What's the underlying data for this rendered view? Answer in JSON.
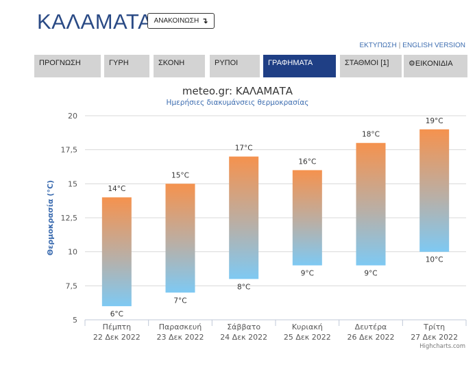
{
  "header": {
    "city": "ΚΑΛΑΜΑΤΑ",
    "announce_label": "ΑΝΑΚΟΙΝΩΣΗ",
    "announce_icon": "arrow-down-right-icon",
    "print_link": "ΕΚΤΥΠΩΣΗ",
    "english_link": "ENGLISH VERSION"
  },
  "tabs": [
    {
      "label": "ΠΡΟΓΝΩΣΗ",
      "active": false
    },
    {
      "label": "ΓΥΡΗ",
      "active": false
    },
    {
      "label": "ΣΚΟΝΗ",
      "active": false
    },
    {
      "label": "ΡΥΠΟΙ",
      "active": false
    },
    {
      "label": "ΓΡΑΦΗΜΑΤΑ",
      "active": true
    },
    {
      "label": "ΣΤΑΘΜΟΙ [1]",
      "active": false
    },
    {
      "label": "ΕΙΚΟΝΙΔΙΑ",
      "active": false,
      "icon": "gear-icon"
    }
  ],
  "credit": "Highcharts.com",
  "colors": {
    "bar_top": "#f5924e",
    "bar_bottom": "#7ec9f3",
    "accent": "#1f3f85"
  },
  "chart_data": {
    "type": "bar",
    "subtype": "columnrange",
    "title": "meteo.gr: ΚΑΛΑΜΑΤΑ",
    "subtitle": "Ημερήσιες διακυμάνσεις θερμοκρασίας",
    "ylabel": "Θερμοκρασία (°C)",
    "ylim": [
      5,
      20
    ],
    "yticks": [
      "5",
      "7,5",
      "10",
      "12,5",
      "15",
      "17,5",
      "20"
    ],
    "grid": true,
    "unit": "°C",
    "categories": [
      {
        "day": "Πέμπτη",
        "date": "22 Δεκ 2022"
      },
      {
        "day": "Παρασκευή",
        "date": "23 Δεκ 2022"
      },
      {
        "day": "Σάββατο",
        "date": "24 Δεκ 2022"
      },
      {
        "day": "Κυριακή",
        "date": "25 Δεκ 2022"
      },
      {
        "day": "Δευτέρα",
        "date": "26 Δεκ 2022"
      },
      {
        "day": "Τρίτη",
        "date": "27 Δεκ 2022"
      }
    ],
    "low": [
      6,
      7,
      8,
      9,
      9,
      10
    ],
    "high": [
      14,
      15,
      17,
      16,
      18,
      19
    ]
  }
}
